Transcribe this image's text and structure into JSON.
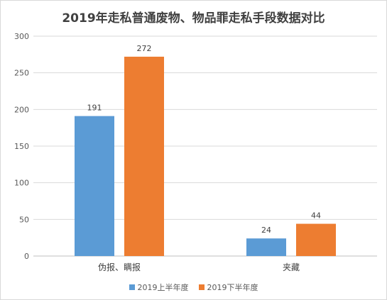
{
  "chart_data": {
    "type": "bar",
    "title": "2019年走私普通废物、物品罪走私手段数据对比",
    "xlabel": "",
    "ylabel": "",
    "categories": [
      "伪报、瞒报",
      "夹藏"
    ],
    "series": [
      {
        "name": "2019上半年度",
        "values": [
          191,
          24
        ],
        "color": "#5b9bd5"
      },
      {
        "name": "2019下半年度",
        "values": [
          272,
          44
        ],
        "color": "#ed7d31"
      }
    ],
    "ylim": [
      0,
      300
    ],
    "yticks": [
      0,
      50,
      100,
      150,
      200,
      250,
      300
    ],
    "grid": true,
    "data_labels": true,
    "legend_position": "bottom"
  }
}
